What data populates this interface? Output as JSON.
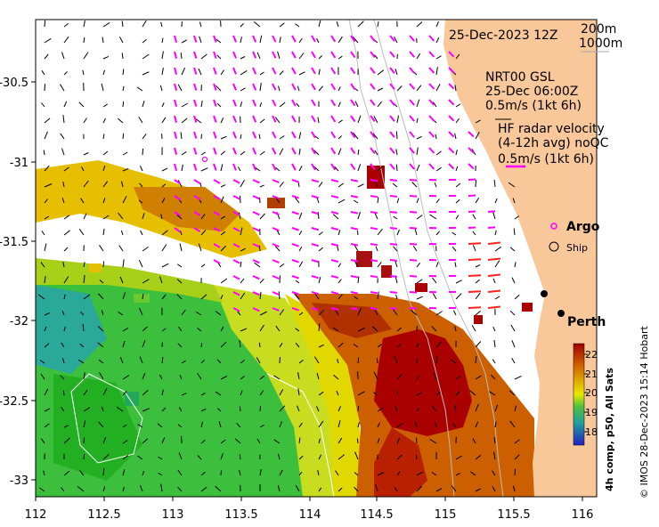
{
  "date_label": "25-Dec-2023 12Z",
  "isobath_labels": [
    "200m",
    "1000m"
  ],
  "model_label": [
    "NRT00 GSL",
    "25-Dec 06:00Z",
    "0.5m/s (1kt 6h)"
  ],
  "hf_label": [
    "HF radar velocity",
    "(4-12h avg) noQC",
    "0.5m/s (1kt 6h)"
  ],
  "argo_label": "Argo",
  "ship_label": "Ship",
  "city_label": "Perth",
  "colorbar_title": "4h comp, p50, All Sats",
  "colorbar_ticks": [
    "22",
    "21",
    "20",
    "19",
    "18"
  ],
  "credit": "© IMOS 28-Dec-2023 15:14 Hobart",
  "x_ticks": [
    "112",
    "112.5",
    "113",
    "113.5",
    "114",
    "114.5",
    "115",
    "115.5",
    "116"
  ],
  "y_ticks": [
    "-30.5",
    "-31",
    "-31.5",
    "-32",
    "-32.5",
    "-33"
  ],
  "colors": {
    "land": "#f8c79a",
    "hf_arrow": "#ff00ff",
    "hf_strong_arrow": "#ff2020",
    "sst_hot": "#b00000",
    "sst_warm": "#d46a00",
    "sst_mid": "#e8e000",
    "sst_cool": "#30c030",
    "sst_cold": "#18a0b0"
  }
}
